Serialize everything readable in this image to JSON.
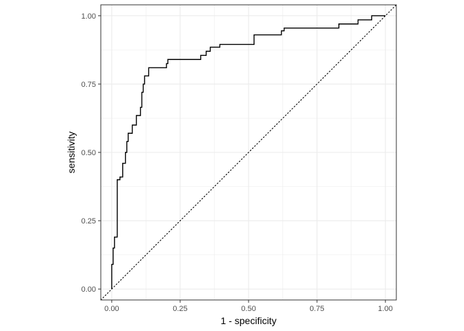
{
  "chart_data": {
    "type": "line",
    "title": "",
    "xlabel": "1 - specificity",
    "ylabel": "sensitivity",
    "xlim": [
      -0.04,
      1.04
    ],
    "ylim": [
      -0.04,
      1.04
    ],
    "x_ticks": [
      0.0,
      0.25,
      0.5,
      0.75,
      1.0
    ],
    "x_tick_labels": [
      "0.00",
      "0.25",
      "0.50",
      "0.75",
      "1.00"
    ],
    "y_ticks": [
      0.0,
      0.25,
      0.5,
      0.75,
      1.0
    ],
    "y_tick_labels": [
      "0.00",
      "0.25",
      "0.50",
      "0.75",
      "1.00"
    ],
    "grid": true,
    "aspect": "equal",
    "colors": {
      "curve": "#000000",
      "grid": "#ebebeb",
      "border": "#333333",
      "reference": "#000000"
    },
    "series": [
      {
        "style": "step",
        "x": [
          0.0,
          0.0,
          0.005,
          0.005,
          0.01,
          0.01,
          0.02,
          0.02,
          0.03,
          0.03,
          0.04,
          0.04,
          0.05,
          0.05,
          0.055,
          0.055,
          0.06,
          0.06,
          0.075,
          0.075,
          0.09,
          0.09,
          0.105,
          0.105,
          0.11,
          0.11,
          0.115,
          0.115,
          0.12,
          0.12,
          0.135,
          0.135,
          0.2,
          0.2,
          0.205,
          0.205,
          0.325,
          0.325,
          0.345,
          0.345,
          0.36,
          0.36,
          0.395,
          0.395,
          0.52,
          0.52,
          0.62,
          0.62,
          0.63,
          0.63,
          0.83,
          0.83,
          0.9,
          0.9,
          0.95,
          0.95,
          1.0
        ],
        "y": [
          0.0,
          0.09,
          0.09,
          0.15,
          0.15,
          0.19,
          0.19,
          0.4,
          0.4,
          0.41,
          0.41,
          0.46,
          0.46,
          0.5,
          0.5,
          0.54,
          0.54,
          0.57,
          0.57,
          0.6,
          0.6,
          0.635,
          0.635,
          0.665,
          0.665,
          0.72,
          0.72,
          0.75,
          0.75,
          0.78,
          0.78,
          0.81,
          0.81,
          0.825,
          0.825,
          0.84,
          0.84,
          0.855,
          0.855,
          0.87,
          0.87,
          0.885,
          0.885,
          0.895,
          0.895,
          0.93,
          0.93,
          0.945,
          0.945,
          0.955,
          0.955,
          0.97,
          0.97,
          0.985,
          0.985,
          1.0,
          1.0
        ]
      },
      {
        "style": "dotted",
        "x": [
          -0.04,
          1.04
        ],
        "y": [
          -0.04,
          1.04
        ]
      }
    ]
  }
}
